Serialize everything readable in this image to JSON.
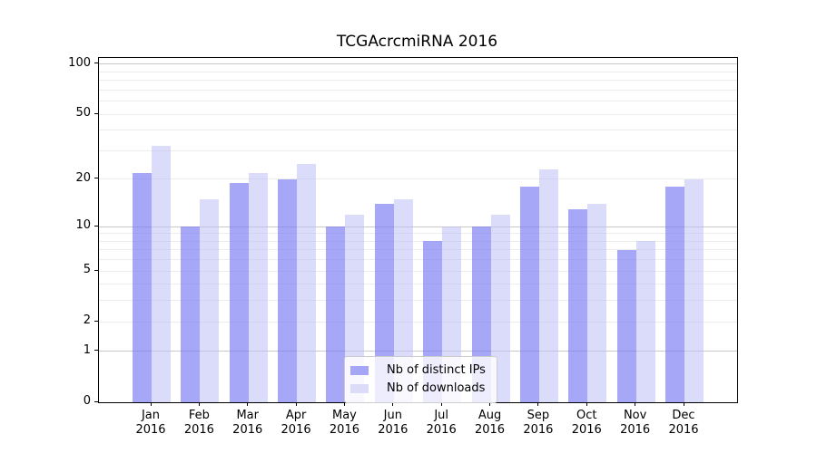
{
  "chart_data": {
    "type": "bar",
    "title": "TCGAcrcmiRNA 2016",
    "year": "2016",
    "months": [
      "Jan",
      "Feb",
      "Mar",
      "Apr",
      "May",
      "Jun",
      "Jul",
      "Aug",
      "Sep",
      "Oct",
      "Nov",
      "Dec"
    ],
    "series": [
      {
        "name": "Nb of distinct IPs",
        "color": "#a6a6f6",
        "rgba": "rgba(122,122,243,0.66)",
        "values": [
          22,
          10,
          19,
          20,
          10,
          14,
          8,
          10,
          18,
          13,
          7,
          18
        ]
      },
      {
        "name": "Nb of downloads",
        "color": "#dcdcf9",
        "rgba": "rgba(190,190,246,0.55)",
        "values": [
          32,
          15,
          22,
          25,
          12,
          15,
          10,
          12,
          23,
          14,
          8,
          20
        ]
      }
    ],
    "yscale": "log1p",
    "ylim": [
      0,
      109
    ],
    "yticks": [
      0,
      1,
      2,
      5,
      10,
      20,
      50,
      100
    ],
    "major_gridlines": [
      1,
      10,
      100
    ],
    "minor_gridlines": [
      2,
      3,
      4,
      5,
      6,
      7,
      8,
      9,
      20,
      30,
      40,
      50,
      60,
      70,
      80,
      90
    ],
    "grid": true,
    "legend_position": "lower center",
    "axis_color": "#000000",
    "major_grid_color": "#c8c8c8",
    "minor_grid_color": "#ececec",
    "xlabel": "",
    "ylabel": ""
  }
}
